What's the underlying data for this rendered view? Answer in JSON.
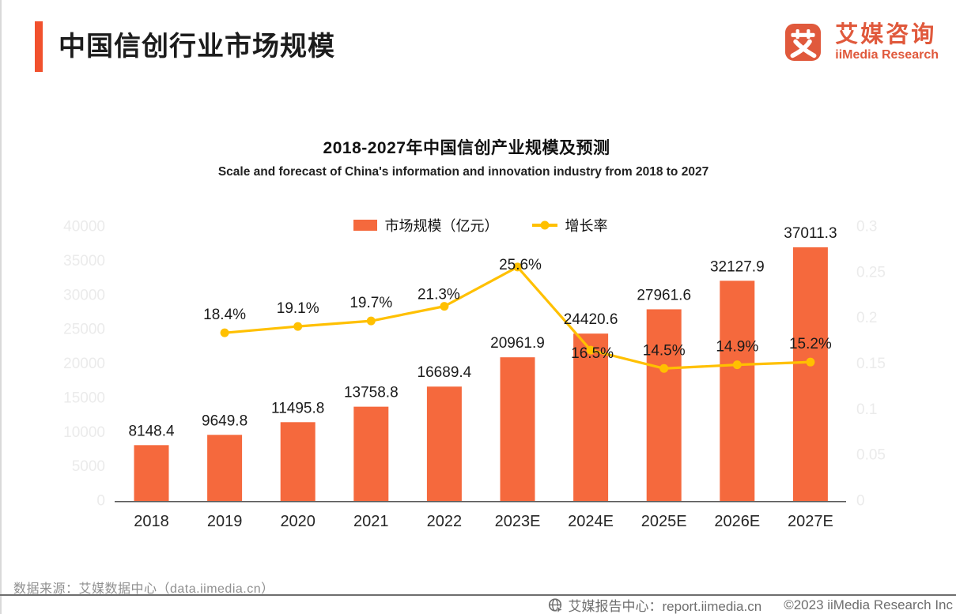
{
  "header": {
    "title": "中国信创行业市场规模",
    "logo": {
      "name_cn": "艾媒咨询",
      "name_en": "iiMedia Research",
      "color": "#e0593c"
    }
  },
  "chart_data": {
    "type": "bar+line",
    "title": "2018-2027年中国信创产业规模及预测",
    "subtitle": "Scale and forecast of China's information and innovation industry from 2018 to 2027",
    "categories": [
      "2018",
      "2019",
      "2020",
      "2021",
      "2022",
      "2023E",
      "2024E",
      "2025E",
      "2026E",
      "2027E"
    ],
    "series": [
      {
        "name": "市场规模（亿元）",
        "type": "bar",
        "color": "#f5693d",
        "values": [
          8148.4,
          9649.8,
          11495.8,
          13758.8,
          16689.4,
          20961.9,
          24420.6,
          27961.6,
          32127.9,
          37011.3
        ]
      },
      {
        "name": "增长率",
        "type": "line",
        "color": "#ffc000",
        "values": [
          null,
          0.184,
          0.191,
          0.197,
          0.213,
          0.256,
          0.165,
          0.145,
          0.149,
          0.152
        ],
        "labels": [
          null,
          "18.4%",
          "19.1%",
          "19.7%",
          "21.3%",
          "25.6%",
          "16.5%",
          "14.5%",
          "14.9%",
          "15.2%"
        ]
      }
    ],
    "left_axis": {
      "min": 0,
      "max": 40000,
      "tick_labels": [
        "0",
        "5000",
        "10000",
        "15000",
        "20000",
        "25000",
        "30000",
        "35000",
        "40000"
      ]
    },
    "right_axis": {
      "min": 0,
      "max": 0.3,
      "tick_labels": [
        "0",
        "0.05",
        "0.1",
        "0.15",
        "0.2",
        "0.25",
        "0.3"
      ]
    },
    "legend_position": "top",
    "grid": false,
    "axis_label_color": "#ebebeb",
    "value_label_color": "#1a1a1a"
  },
  "footer": {
    "source": "数据来源：艾媒数据中心（data.iimedia.cn）",
    "report_center": "艾媒报告中心：report.iimedia.cn",
    "copyright": "©2023  iiMedia Research  Inc"
  }
}
